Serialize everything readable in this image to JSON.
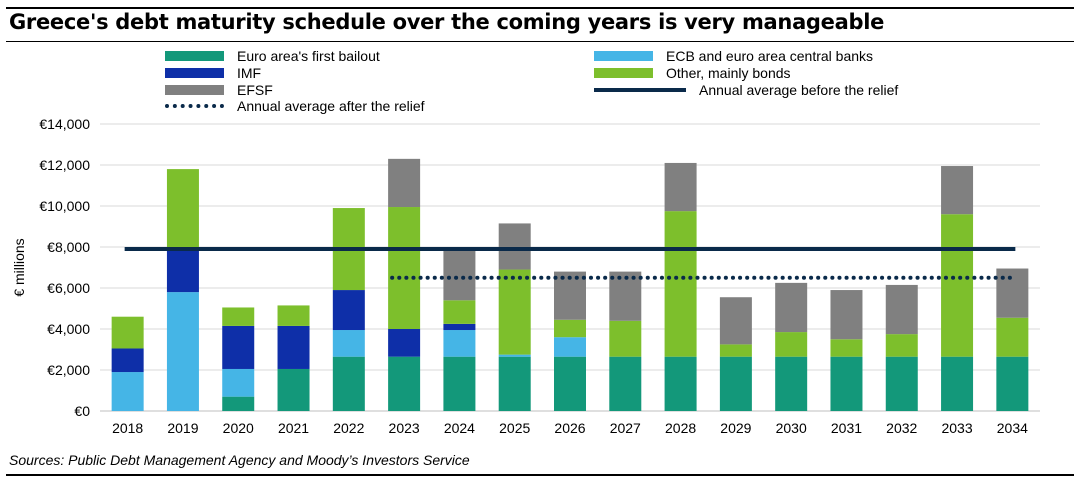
{
  "title": "Greece's debt maturity schedule over the coming years is very manageable",
  "source": "Sources: Public Debt Management Agency and Moody’s Investors Service",
  "colors": {
    "euro_area": "#13987a",
    "ecb": "#45b5e6",
    "imf": "#0e2fa8",
    "other_bonds": "#7dbf2c",
    "efsf": "#808080",
    "avg_before": "#0a2a4a",
    "avg_after": "#0a2a4a",
    "grid": "#d9d9d9"
  },
  "legend": [
    {
      "label": "Euro area's first bailout",
      "kind": "box",
      "color_key": "euro_area"
    },
    {
      "label": "ECB and euro area central banks",
      "kind": "box",
      "color_key": "ecb"
    },
    {
      "label": "IMF",
      "kind": "box",
      "color_key": "imf"
    },
    {
      "label": "Other, mainly bonds",
      "kind": "box",
      "color_key": "other_bonds"
    },
    {
      "label": "EFSF",
      "kind": "box",
      "color_key": "efsf"
    },
    {
      "label": "Annual average before the relief",
      "kind": "line",
      "color_key": "avg_before"
    },
    {
      "label": "Annual average after the relief",
      "kind": "dotted",
      "color_key": "avg_after"
    }
  ],
  "chart_data": {
    "type": "bar",
    "stacked": true,
    "title": "Greece's debt maturity schedule over the coming years is very manageable",
    "xlabel": "",
    "ylabel": "€ millions",
    "ylim": [
      0,
      14000
    ],
    "yticks": [
      0,
      2000,
      4000,
      6000,
      8000,
      10000,
      12000,
      14000
    ],
    "ytick_labels": [
      "€0",
      "€2,000",
      "€4,000",
      "€6,000",
      "€8,000",
      "€10,000",
      "€12,000",
      "€14,000"
    ],
    "grid": true,
    "legend_position": "top",
    "categories": [
      "2018",
      "2019",
      "2020",
      "2021",
      "2022",
      "2023",
      "2024",
      "2025",
      "2026",
      "2027",
      "2028",
      "2029",
      "2030",
      "2031",
      "2032",
      "2033",
      "2034"
    ],
    "series": [
      {
        "name": "Euro area's first bailout",
        "color_key": "euro_area",
        "values": [
          0,
          0,
          700,
          2050,
          2650,
          2650,
          2650,
          2650,
          2650,
          2650,
          2650,
          2650,
          2650,
          2650,
          2650,
          2650,
          2650
        ]
      },
      {
        "name": "ECB and euro area central banks",
        "color_key": "ecb",
        "values": [
          1900,
          5800,
          1350,
          0,
          1300,
          0,
          1300,
          100,
          950,
          0,
          0,
          0,
          0,
          0,
          0,
          0,
          0
        ]
      },
      {
        "name": "IMF",
        "color_key": "imf",
        "values": [
          1150,
          2200,
          2100,
          2100,
          1950,
          1350,
          300,
          0,
          0,
          0,
          0,
          0,
          0,
          0,
          0,
          0,
          0
        ]
      },
      {
        "name": "Other, mainly bonds",
        "color_key": "other_bonds",
        "values": [
          1550,
          3800,
          900,
          1000,
          4000,
          5950,
          1150,
          4150,
          850,
          1750,
          7100,
          600,
          1200,
          850,
          1100,
          6950,
          1900
        ]
      },
      {
        "name": "EFSF",
        "color_key": "efsf",
        "values": [
          0,
          0,
          0,
          0,
          0,
          2350,
          2550,
          2250,
          2350,
          2400,
          2350,
          2300,
          2400,
          2400,
          2400,
          2350,
          2400
        ]
      }
    ],
    "reference_lines": [
      {
        "name": "Annual average before the relief",
        "value": 7900,
        "from": "2018",
        "to": "2034",
        "style": "solid",
        "color_key": "avg_before"
      },
      {
        "name": "Annual average after the relief",
        "value": 6500,
        "from": "2023",
        "to": "2034",
        "style": "dotted",
        "color_key": "avg_after"
      }
    ]
  }
}
